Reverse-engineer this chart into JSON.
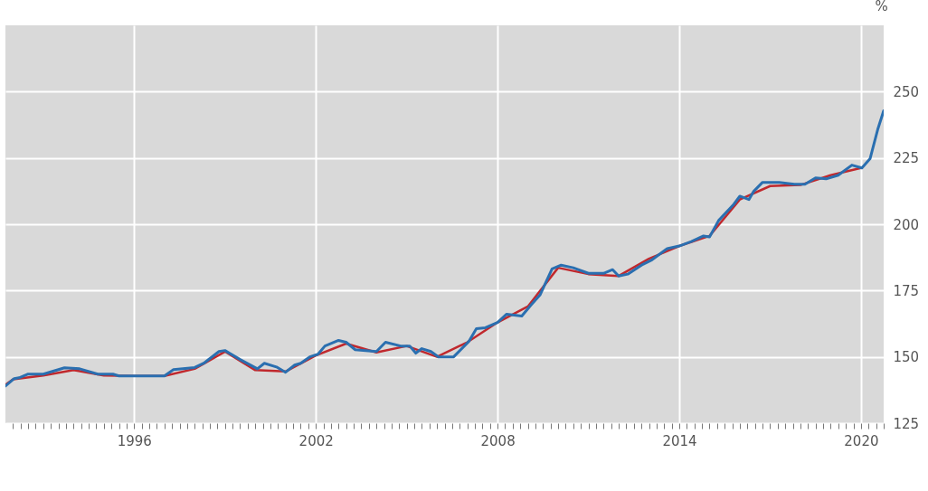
{
  "chart_data": {
    "type": "line",
    "ylabel": "%",
    "xlim": [
      1991.75,
      2020.75
    ],
    "ylim": [
      125,
      275
    ],
    "yticks": [
      125,
      150,
      175,
      200,
      225,
      250
    ],
    "xticks": [
      {
        "value": 1992,
        "label": null
      },
      {
        "value": 1992.25,
        "label": null
      },
      {
        "value": 1992.5,
        "label": null
      },
      {
        "value": 1992.75,
        "label": null
      },
      {
        "value": 1993,
        "label": null
      },
      {
        "value": 1993.25,
        "label": null
      },
      {
        "value": 1993.5,
        "label": null
      },
      {
        "value": 1993.75,
        "label": null
      },
      {
        "value": 1994,
        "label": null
      },
      {
        "value": 1994.25,
        "label": null
      },
      {
        "value": 1994.5,
        "label": null
      },
      {
        "value": 1994.75,
        "label": null
      },
      {
        "value": 1995,
        "label": null
      },
      {
        "value": 1995.25,
        "label": null
      },
      {
        "value": 1995.5,
        "label": null
      },
      {
        "value": 1995.75,
        "label": null
      },
      1996,
      {
        "value": 1996.25,
        "label": null
      },
      {
        "value": 1996.5,
        "label": null
      },
      {
        "value": 1996.75,
        "label": null
      },
      {
        "value": 1997,
        "label": null
      },
      {
        "value": 1997.25,
        "label": null
      },
      {
        "value": 1997.5,
        "label": null
      },
      {
        "value": 1997.75,
        "label": null
      },
      {
        "value": 1998,
        "label": null
      },
      {
        "value": 1998.25,
        "label": null
      },
      {
        "value": 1998.5,
        "label": null
      },
      {
        "value": 1998.75,
        "label": null
      },
      {
        "value": 1999,
        "label": null
      },
      {
        "value": 1999.25,
        "label": null
      },
      {
        "value": 1999.5,
        "label": null
      },
      {
        "value": 1999.75,
        "label": null
      },
      {
        "value": 2000,
        "label": null
      },
      {
        "value": 2000.25,
        "label": null
      },
      {
        "value": 2000.5,
        "label": null
      },
      {
        "value": 2000.75,
        "label": null
      },
      {
        "value": 2001,
        "label": null
      },
      {
        "value": 2001.25,
        "label": null
      },
      {
        "value": 2001.5,
        "label": null
      },
      {
        "value": 2001.75,
        "label": null
      },
      2002,
      {
        "value": 2002.25,
        "label": null
      },
      {
        "value": 2002.5,
        "label": null
      },
      {
        "value": 2002.75,
        "label": null
      },
      {
        "value": 2003,
        "label": null
      },
      {
        "value": 2003.25,
        "label": null
      },
      {
        "value": 2003.5,
        "label": null
      },
      {
        "value": 2003.75,
        "label": null
      },
      {
        "value": 2004,
        "label": null
      },
      {
        "value": 2004.25,
        "label": null
      },
      {
        "value": 2004.5,
        "label": null
      },
      {
        "value": 2004.75,
        "label": null
      },
      {
        "value": 2005,
        "label": null
      },
      {
        "value": 2005.25,
        "label": null
      },
      {
        "value": 2005.5,
        "label": null
      },
      {
        "value": 2005.75,
        "label": null
      },
      {
        "value": 2006,
        "label": null
      },
      {
        "value": 2006.25,
        "label": null
      },
      {
        "value": 2006.5,
        "label": null
      },
      {
        "value": 2006.75,
        "label": null
      },
      {
        "value": 2007,
        "label": null
      },
      {
        "value": 2007.25,
        "label": null
      },
      {
        "value": 2007.5,
        "label": null
      },
      {
        "value": 2007.75,
        "label": null
      },
      2008,
      {
        "value": 2008.25,
        "label": null
      },
      {
        "value": 2008.5,
        "label": null
      },
      {
        "value": 2008.75,
        "label": null
      },
      {
        "value": 2009,
        "label": null
      },
      {
        "value": 2009.25,
        "label": null
      },
      {
        "value": 2009.5,
        "label": null
      },
      {
        "value": 2009.75,
        "label": null
      },
      {
        "value": 2010,
        "label": null
      },
      {
        "value": 2010.25,
        "label": null
      },
      {
        "value": 2010.5,
        "label": null
      },
      {
        "value": 2010.75,
        "label": null
      },
      {
        "value": 2011,
        "label": null
      },
      {
        "value": 2011.25,
        "label": null
      },
      {
        "value": 2011.5,
        "label": null
      },
      {
        "value": 2011.75,
        "label": null
      },
      {
        "value": 2012,
        "label": null
      },
      {
        "value": 2012.25,
        "label": null
      },
      {
        "value": 2012.5,
        "label": null
      },
      {
        "value": 2012.75,
        "label": null
      },
      {
        "value": 2013,
        "label": null
      },
      {
        "value": 2013.25,
        "label": null
      },
      {
        "value": 2013.5,
        "label": null
      },
      {
        "value": 2013.75,
        "label": null
      },
      2014,
      {
        "value": 2014.25,
        "label": null
      },
      {
        "value": 2014.5,
        "label": null
      },
      {
        "value": 2014.75,
        "label": null
      },
      {
        "value": 2015,
        "label": null
      },
      {
        "value": 2015.25,
        "label": null
      },
      {
        "value": 2015.5,
        "label": null
      },
      {
        "value": 2015.75,
        "label": null
      },
      {
        "value": 2016,
        "label": null
      },
      {
        "value": 2016.25,
        "label": null
      },
      {
        "value": 2016.5,
        "label": null
      },
      {
        "value": 2016.75,
        "label": null
      },
      {
        "value": 2017,
        "label": null
      },
      {
        "value": 2017.25,
        "label": null
      },
      {
        "value": 2017.5,
        "label": null
      },
      {
        "value": 2017.75,
        "label": null
      },
      {
        "value": 2018,
        "label": null
      },
      {
        "value": 2018.25,
        "label": null
      },
      {
        "value": 2018.5,
        "label": null
      },
      {
        "value": 2018.75,
        "label": null
      },
      {
        "value": 2019,
        "label": null
      },
      {
        "value": 2019.25,
        "label": null
      },
      {
        "value": 2019.5,
        "label": null
      },
      {
        "value": 2019.75,
        "label": null
      },
      2020,
      {
        "value": 2020.25,
        "label": null
      },
      {
        "value": 2020.5,
        "label": null
      },
      {
        "value": 2020.75,
        "label": null
      }
    ],
    "grid": true,
    "series": [
      {
        "color": "#c0282d",
        "x": [
          1991.75,
          1992,
          1993,
          1994,
          1995,
          1996,
          1997,
          1998,
          1999,
          2000,
          2001,
          2002,
          2003,
          2004,
          2005,
          2006,
          2007,
          2008,
          2009,
          2010,
          2011,
          2012,
          2013,
          2014,
          2015,
          2016,
          2017,
          2018,
          2019,
          2020
        ],
        "values": [
          139.5,
          141.5,
          143,
          145,
          143,
          142.8,
          142.8,
          145.5,
          152,
          145,
          144.5,
          150.5,
          155,
          151.7,
          154.1,
          150,
          155.5,
          163,
          169,
          183.6,
          181.2,
          180.5,
          187,
          191.8,
          195.6,
          209.3,
          214.4,
          214.8,
          218.5,
          221.2
        ]
      },
      {
        "color": "#2a6fb0",
        "x": [
          1991.75,
          1992.04,
          1992.2,
          1992.5,
          1993,
          1993.3,
          1993.7,
          1994.2,
          1994.8,
          1995.3,
          1995.5,
          1996,
          1997,
          1997.3,
          1998,
          1998.3,
          1998.8,
          1999,
          1999.5,
          2000.07,
          2000.3,
          2000.7,
          2001,
          2001.3,
          2001.5,
          2001.8,
          2002.07,
          2002.3,
          2002.75,
          2003,
          2003.3,
          2004,
          2004.3,
          2004.8,
          2005.1,
          2005.3,
          2005.5,
          2005.8,
          2006.05,
          2006.55,
          2007.05,
          2007.3,
          2007.6,
          2008,
          2008.3,
          2008.8,
          2009.1,
          2009.4,
          2009.8,
          2010.1,
          2010.5,
          2011,
          2011.5,
          2011.8,
          2012,
          2012.3,
          2012.8,
          2013.1,
          2013.6,
          2014,
          2014.4,
          2014.8,
          2015,
          2015.3,
          2015.8,
          2016,
          2016.3,
          2016.45,
          2016.75,
          2017.3,
          2017.8,
          2018.15,
          2018.5,
          2018.85,
          2019.25,
          2019.7,
          2020.03,
          2020.3,
          2020.55,
          2020.75
        ],
        "values": [
          139,
          141.8,
          142.1,
          143.5,
          143.5,
          144.5,
          145.9,
          145.5,
          143.5,
          143.5,
          142.8,
          142.8,
          142.8,
          145.2,
          146,
          147.6,
          152,
          152.4,
          149,
          145.5,
          147.6,
          146.2,
          144.2,
          146.9,
          147.6,
          150,
          151,
          154.1,
          156.2,
          155.5,
          152.7,
          152,
          155.5,
          154.1,
          154.1,
          151.4,
          153.1,
          152,
          150,
          150,
          155.8,
          160.6,
          161,
          163,
          166.1,
          165.4,
          169.5,
          173.3,
          183.2,
          184.6,
          183.6,
          181.5,
          181.5,
          182.9,
          180.5,
          181.2,
          184.9,
          186.6,
          190.8,
          191.8,
          193.5,
          195.6,
          195.2,
          201.4,
          207.5,
          210.6,
          209.3,
          212.3,
          215.8,
          215.8,
          215.1,
          215.1,
          217.5,
          217.1,
          218.5,
          222.3,
          221.2,
          224.7,
          235.6,
          242.8
        ]
      }
    ]
  }
}
